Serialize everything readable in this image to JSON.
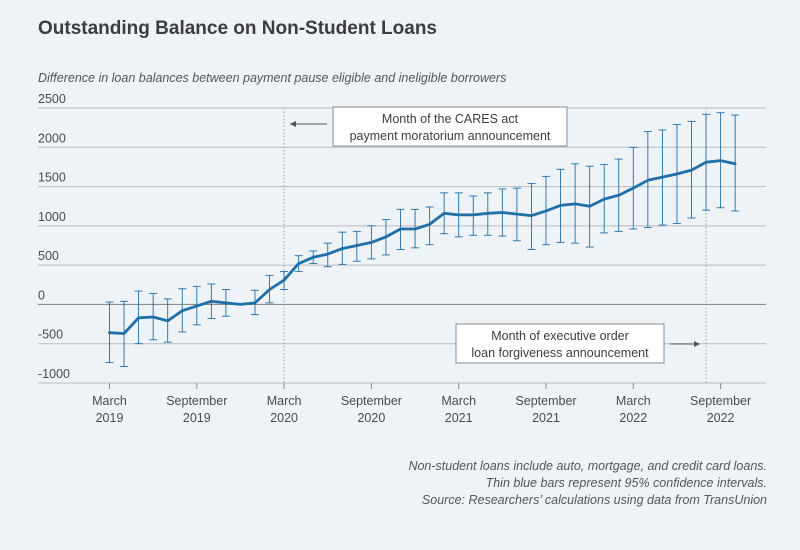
{
  "title": "Outstanding Balance on Non-Student Loans",
  "subtitle": "Difference in loan balances between payment pause eligible and ineligible borrowers",
  "notes": [
    "Non-student loans include auto, mortgage, and credit card loans.",
    "Thin blue bars represent 95% confidence intervals.",
    "Source: Researchers’ calculations using data from TransUnion"
  ],
  "colors": {
    "background": "#eef3f8",
    "series": "#1f6fa8",
    "grid": "#b8bcc2",
    "zero_line": "#8c8c8c"
  },
  "chart_data": {
    "type": "line",
    "ylim": [
      -1000,
      2500
    ],
    "yticks": [
      2500,
      2000,
      1500,
      1000,
      500,
      0,
      -500,
      -1000
    ],
    "ytick_labels": [
      "2500",
      "2000",
      "1500",
      "1000",
      "500",
      "0",
      "-500",
      "-1000"
    ],
    "xlim": [
      "2019-01",
      "2022-11"
    ],
    "xticks": [
      {
        "x": "2019-03",
        "label": [
          "March",
          "2019"
        ]
      },
      {
        "x": "2019-09",
        "label": [
          "September",
          "2019"
        ]
      },
      {
        "x": "2020-03",
        "label": [
          "March",
          "2020"
        ]
      },
      {
        "x": "2020-09",
        "label": [
          "September",
          "2020"
        ]
      },
      {
        "x": "2021-03",
        "label": [
          "March",
          "2021"
        ]
      },
      {
        "x": "2021-09",
        "label": [
          "September",
          "2021"
        ]
      },
      {
        "x": "2022-03",
        "label": [
          "March",
          "2022"
        ]
      },
      {
        "x": "2022-09",
        "label": [
          "September",
          "2022"
        ]
      }
    ],
    "grid": true,
    "series": [
      {
        "points": [
          {
            "x": "2019-03",
            "y": -360,
            "lo": -740,
            "hi": 30
          },
          {
            "x": "2019-04",
            "y": -370,
            "lo": -790,
            "hi": 40
          },
          {
            "x": "2019-05",
            "y": -170,
            "lo": -500,
            "hi": 170
          },
          {
            "x": "2019-06",
            "y": -160,
            "lo": -450,
            "hi": 140
          },
          {
            "x": "2019-07",
            "y": -210,
            "lo": -480,
            "hi": 70
          },
          {
            "x": "2019-08",
            "y": -80,
            "lo": -350,
            "hi": 200
          },
          {
            "x": "2019-09",
            "y": -20,
            "lo": -260,
            "hi": 230
          },
          {
            "x": "2019-10",
            "y": 40,
            "lo": -180,
            "hi": 260
          },
          {
            "x": "2019-11",
            "y": 20,
            "lo": -150,
            "hi": 190
          },
          {
            "x": "2019-12",
            "y": 0,
            "lo": -1,
            "hi": 1
          },
          {
            "x": "2020-01",
            "y": 20,
            "lo": -130,
            "hi": 180
          },
          {
            "x": "2020-02",
            "y": 190,
            "lo": 20,
            "hi": 370
          },
          {
            "x": "2020-03",
            "y": 310,
            "lo": 190,
            "hi": 420
          },
          {
            "x": "2020-04",
            "y": 520,
            "lo": 420,
            "hi": 620
          },
          {
            "x": "2020-05",
            "y": 600,
            "lo": 520,
            "hi": 680
          },
          {
            "x": "2020-06",
            "y": 640,
            "lo": 480,
            "hi": 780
          },
          {
            "x": "2020-07",
            "y": 710,
            "lo": 510,
            "hi": 920
          },
          {
            "x": "2020-08",
            "y": 750,
            "lo": 550,
            "hi": 930
          },
          {
            "x": "2020-09",
            "y": 790,
            "lo": 580,
            "hi": 1000
          },
          {
            "x": "2020-10",
            "y": 860,
            "lo": 630,
            "hi": 1080
          },
          {
            "x": "2020-11",
            "y": 960,
            "lo": 700,
            "hi": 1210
          },
          {
            "x": "2020-12",
            "y": 960,
            "lo": 720,
            "hi": 1210
          },
          {
            "x": "2021-01",
            "y": 1020,
            "lo": 760,
            "hi": 1240
          },
          {
            "x": "2021-02",
            "y": 1160,
            "lo": 900,
            "hi": 1420
          },
          {
            "x": "2021-03",
            "y": 1140,
            "lo": 860,
            "hi": 1420
          },
          {
            "x": "2021-04",
            "y": 1140,
            "lo": 880,
            "hi": 1380
          },
          {
            "x": "2021-05",
            "y": 1160,
            "lo": 880,
            "hi": 1420
          },
          {
            "x": "2021-06",
            "y": 1170,
            "lo": 870,
            "hi": 1470
          },
          {
            "x": "2021-07",
            "y": 1150,
            "lo": 810,
            "hi": 1480
          },
          {
            "x": "2021-08",
            "y": 1130,
            "lo": 700,
            "hi": 1540
          },
          {
            "x": "2021-09",
            "y": 1190,
            "lo": 760,
            "hi": 1630
          },
          {
            "x": "2021-10",
            "y": 1260,
            "lo": 790,
            "hi": 1720
          },
          {
            "x": "2021-11",
            "y": 1280,
            "lo": 780,
            "hi": 1790
          },
          {
            "x": "2021-12",
            "y": 1250,
            "lo": 730,
            "hi": 1760
          },
          {
            "x": "2022-01",
            "y": 1340,
            "lo": 910,
            "hi": 1780
          },
          {
            "x": "2022-02",
            "y": 1390,
            "lo": 930,
            "hi": 1850
          },
          {
            "x": "2022-03",
            "y": 1480,
            "lo": 960,
            "hi": 2000
          },
          {
            "x": "2022-04",
            "y": 1580,
            "lo": 980,
            "hi": 2200
          },
          {
            "x": "2022-05",
            "y": 1620,
            "lo": 1010,
            "hi": 2220
          },
          {
            "x": "2022-06",
            "y": 1660,
            "lo": 1030,
            "hi": 2290
          },
          {
            "x": "2022-07",
            "y": 1710,
            "lo": 1100,
            "hi": 2330
          },
          {
            "x": "2022-08",
            "y": 1810,
            "lo": 1200,
            "hi": 2420
          },
          {
            "x": "2022-09",
            "y": 1830,
            "lo": 1230,
            "hi": 2440
          },
          {
            "x": "2022-10",
            "y": 1790,
            "lo": 1190,
            "hi": 2410
          }
        ]
      }
    ],
    "annotations": [
      {
        "text": [
          "Month of the CARES act",
          "payment moratorium announcement"
        ],
        "x": "2020-03",
        "arrow": "left"
      },
      {
        "text": [
          "Month of executive order",
          "loan forgiveness announcement"
        ],
        "x": "2022-08",
        "arrow": "right"
      }
    ]
  }
}
